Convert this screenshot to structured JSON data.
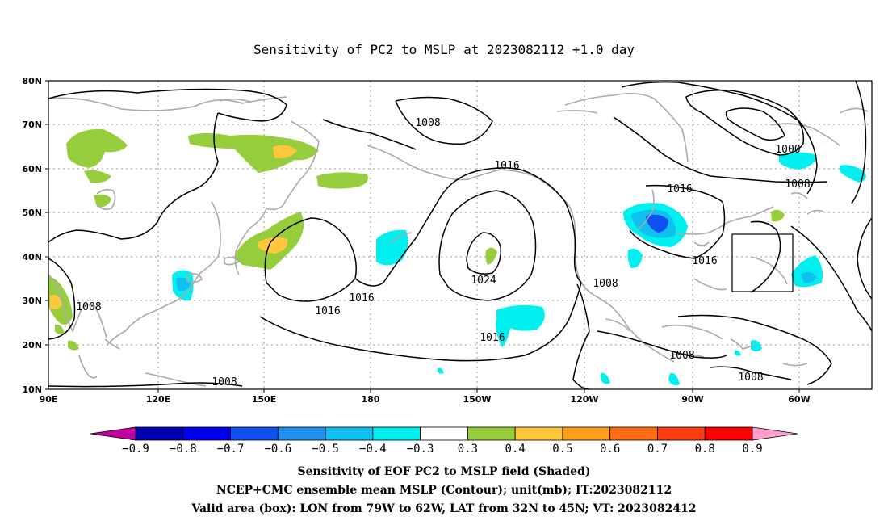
{
  "title": "Sensitivity of PC2 to MSLP at 2023082112 +1.0 day",
  "map": {
    "lat_labels": [
      "80N",
      "70N",
      "60N",
      "50N",
      "40N",
      "30N",
      "20N",
      "10N"
    ],
    "lon_labels": [
      "90E",
      "120E",
      "150E",
      "180",
      "150W",
      "120W",
      "90W",
      "60W"
    ],
    "box_label": "Valid area (box)",
    "box": {
      "lon_west": -79,
      "lon_east": -62,
      "lat_south": 32,
      "lat_north": 45
    }
  },
  "contours": {
    "unit": "mb",
    "labels": [
      {
        "id": "c1",
        "text": "1008"
      },
      {
        "id": "c2",
        "text": "1016"
      },
      {
        "id": "c3",
        "text": "1000"
      },
      {
        "id": "c4",
        "text": "1008"
      },
      {
        "id": "c5",
        "text": "1016"
      },
      {
        "id": "c6",
        "text": "1024"
      },
      {
        "id": "c7",
        "text": "1016"
      },
      {
        "id": "c8",
        "text": "1016"
      },
      {
        "id": "c9",
        "text": "1008"
      },
      {
        "id": "c10",
        "text": "1016"
      },
      {
        "id": "c11",
        "text": "1016"
      },
      {
        "id": "c12",
        "text": "1008"
      },
      {
        "id": "c13",
        "text": "1008"
      },
      {
        "id": "c14",
        "text": "1008"
      },
      {
        "id": "c15",
        "text": "1008"
      }
    ]
  },
  "colorbar": {
    "labels": [
      "−0.9",
      "−0.8",
      "−0.7",
      "−0.6",
      "−0.5",
      "−0.4",
      "−0.3",
      "0.3",
      "0.4",
      "0.5",
      "0.6",
      "0.7",
      "0.8",
      "0.9"
    ],
    "colors": [
      "#c000a0",
      "#0000b0",
      "#0000f0",
      "#1050f0",
      "#2090f0",
      "#10c0f0",
      "#00f0f0",
      "#ffffff",
      "#96cd3c",
      "#ffc83c",
      "#ff9e1e",
      "#ff6e14",
      "#ff3c14",
      "#ff0000",
      "#ff9ec8"
    ]
  },
  "footer": {
    "line1": "Sensitivity of EOF PC2 to MSLP field (Shaded)",
    "line2": "NCEP+CMC ensemble mean MSLP (Contour); unit(mb); IT:2023082112",
    "line3": "Valid area (box): LON from 79W to 62W, LAT from 32N to 45N; VT: 2023082412"
  }
}
